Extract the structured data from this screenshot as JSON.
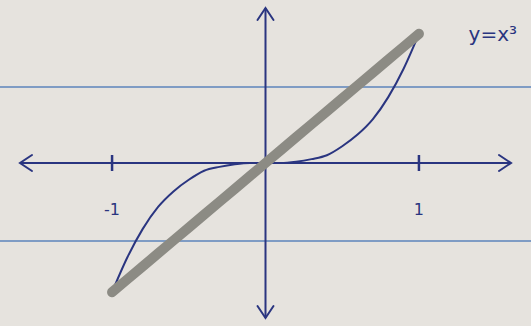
{
  "chart_data": {
    "type": "line",
    "annotations": [
      "y=x³"
    ],
    "x": [
      -1,
      -0.9,
      -0.8,
      -0.7,
      -0.6,
      -0.5,
      -0.4,
      -0.3,
      -0.2,
      -0.1,
      0,
      0.1,
      0.2,
      0.3,
      0.4,
      0.5,
      0.6,
      0.7,
      0.8,
      0.9,
      1
    ],
    "series": [
      {
        "color": "#2a3580",
        "values": [
          -1,
          -0.73,
          -0.51,
          -0.34,
          -0.22,
          -0.13,
          -0.06,
          -0.03,
          -0.01,
          0,
          0,
          0,
          0.01,
          0.03,
          0.06,
          0.13,
          0.22,
          0.34,
          0.51,
          0.73,
          1
        ]
      },
      {
        "color": "#8c8b84",
        "values": [
          -1,
          -0.9,
          -0.8,
          -0.7,
          -0.6,
          -0.5,
          -0.4,
          -0.3,
          -0.2,
          -0.1,
          0,
          0.1,
          0.2,
          0.3,
          0.4,
          0.5,
          0.6,
          0.7,
          0.8,
          0.9,
          1
        ]
      }
    ],
    "xlim": [
      -1.6,
      1.6
    ],
    "ylim": [
      -1.2,
      1.2
    ],
    "xticks": [
      -1,
      1
    ],
    "yticks": [],
    "tick_labels": "x",
    "grid": false
  }
}
